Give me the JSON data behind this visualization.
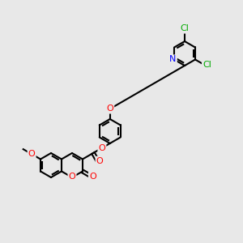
{
  "bg_color": "#e8e8e8",
  "bond_color": "#000000",
  "bond_width": 1.5,
  "atom_colors": {
    "O": "#ff0000",
    "N": "#0000ff",
    "Cl": "#00aa00",
    "C": "#000000"
  },
  "font_size": 9,
  "fig_size": [
    3.0,
    3.0
  ],
  "dpi": 100
}
